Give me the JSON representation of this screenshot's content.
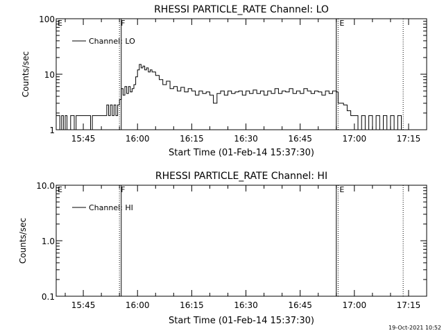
{
  "footer": {
    "timestamp": "19-Oct-2021 10:52"
  },
  "chart_data": [
    {
      "type": "line",
      "title": "RHESSI PARTICLE_RATE Channel: LO",
      "xlabel": "Start Time (01-Feb-14 15:37:30)",
      "ylabel": "Counts/sec",
      "yscale": "log",
      "ylim": [
        1,
        100
      ],
      "xlim": [
        "15:37:30",
        "17:20:00"
      ],
      "x_ticks": [
        "15:45",
        "16:00",
        "16:15",
        "16:30",
        "16:45",
        "17:00",
        "17:15"
      ],
      "y_ticks": [
        "1",
        "10",
        "100"
      ],
      "legend": {
        "entries": [
          "Channel: LO"
        ],
        "position": "top-left"
      },
      "markers": [
        {
          "label": "E",
          "time": "15:37:30",
          "style": "dotted"
        },
        {
          "label": "F",
          "time": "15:55:00",
          "style": "dotted"
        },
        {
          "label": "",
          "time": "15:55:30",
          "style": "solid"
        },
        {
          "label": "E",
          "time": "16:55:30",
          "style": "dotted"
        },
        {
          "label": "",
          "time": "16:55:00",
          "style": "solid"
        },
        {
          "label": "",
          "time": "17:13:30",
          "style": "dotted"
        }
      ],
      "series": [
        {
          "name": "Channel: LO",
          "x": [
            "15:37:30",
            "15:38:30",
            "15:39:00",
            "15:39:30",
            "15:40:00",
            "15:40:30",
            "15:41:00",
            "15:41:30",
            "15:42:00",
            "15:42:30",
            "15:43:00",
            "15:44:00",
            "15:45:00",
            "15:46:00",
            "15:47:00",
            "15:47:30",
            "15:48:00",
            "15:49:00",
            "15:50:00",
            "15:51:00",
            "15:51:30",
            "15:52:00",
            "15:52:30",
            "15:53:00",
            "15:53:30",
            "15:54:00",
            "15:54:30",
            "15:55:00",
            "15:55:30",
            "15:56:00",
            "15:56:30",
            "15:57:00",
            "15:57:30",
            "15:58:00",
            "15:58:30",
            "15:59:00",
            "15:59:30",
            "16:00:00",
            "16:00:30",
            "16:01:00",
            "16:01:30",
            "16:02:00",
            "16:02:30",
            "16:03:00",
            "16:03:30",
            "16:04:00",
            "16:05:00",
            "16:06:00",
            "16:07:00",
            "16:08:00",
            "16:09:00",
            "16:10:00",
            "16:11:00",
            "16:12:00",
            "16:13:00",
            "16:14:00",
            "16:15:00",
            "16:16:00",
            "16:17:00",
            "16:18:00",
            "16:19:00",
            "16:20:00",
            "16:21:00",
            "16:22:00",
            "16:23:00",
            "16:24:00",
            "16:25:00",
            "16:26:00",
            "16:27:00",
            "16:28:00",
            "16:29:00",
            "16:30:00",
            "16:31:00",
            "16:32:00",
            "16:33:00",
            "16:34:00",
            "16:35:00",
            "16:36:00",
            "16:37:00",
            "16:38:00",
            "16:39:00",
            "16:40:00",
            "16:41:00",
            "16:42:00",
            "16:43:00",
            "16:44:00",
            "16:45:00",
            "16:46:00",
            "16:47:00",
            "16:48:00",
            "16:49:00",
            "16:50:00",
            "16:51:00",
            "16:52:00",
            "16:53:00",
            "16:54:00",
            "16:55:00",
            "16:55:30",
            "16:56:00",
            "16:57:00",
            "16:58:00",
            "16:59:00",
            "17:00:00",
            "17:01:00",
            "17:02:00",
            "17:03:00",
            "17:04:00",
            "17:05:00",
            "17:06:00",
            "17:07:00",
            "17:08:00",
            "17:09:00",
            "17:10:00",
            "17:11:00",
            "17:12:00",
            "17:13:00"
          ],
          "y": [
            1.8,
            1.0,
            1.8,
            1.0,
            1.8,
            1.0,
            1.0,
            1.8,
            1.8,
            1.0,
            1.8,
            1.8,
            1.8,
            1.8,
            1.0,
            1.8,
            1.8,
            1.8,
            1.8,
            1.8,
            2.8,
            1.8,
            2.8,
            1.8,
            2.8,
            1.8,
            2.8,
            3.5,
            5.5,
            4.2,
            6.0,
            4.5,
            6.0,
            4.8,
            5.5,
            6.5,
            9.0,
            12.0,
            15.0,
            13.0,
            14.0,
            12.0,
            13.0,
            11.0,
            12.0,
            11.0,
            9.5,
            8.0,
            6.5,
            7.5,
            5.5,
            6.0,
            5.0,
            5.8,
            4.8,
            5.5,
            5.0,
            4.2,
            5.0,
            4.5,
            4.8,
            4.2,
            3.0,
            4.5,
            5.0,
            4.2,
            5.0,
            4.5,
            4.8,
            5.0,
            4.2,
            5.0,
            4.5,
            5.2,
            4.5,
            5.0,
            4.2,
            5.0,
            4.5,
            5.5,
            4.5,
            5.0,
            4.8,
            5.5,
            4.5,
            5.0,
            4.5,
            5.5,
            5.0,
            4.5,
            5.0,
            4.8,
            4.2,
            5.0,
            4.5,
            5.0,
            4.8,
            3.0,
            3.0,
            2.8,
            2.2,
            1.8,
            1.8,
            1.0,
            1.8,
            1.0,
            1.8,
            1.0,
            1.8,
            1.0,
            1.8,
            1.0,
            1.8,
            1.0,
            1.8,
            1.0
          ]
        }
      ]
    },
    {
      "type": "line",
      "title": "RHESSI PARTICLE_RATE Channel: HI",
      "xlabel": "Start Time (01-Feb-14 15:37:30)",
      "ylabel": "Counts/sec",
      "yscale": "log",
      "ylim": [
        0.1,
        10
      ],
      "xlim": [
        "15:37:30",
        "17:20:00"
      ],
      "x_ticks": [
        "15:45",
        "16:00",
        "16:15",
        "16:30",
        "16:45",
        "17:00",
        "17:15"
      ],
      "y_ticks": [
        "0.1",
        "1.0",
        "10.0"
      ],
      "legend": {
        "entries": [
          "Channel: HI"
        ],
        "position": "top-left"
      },
      "markers": [
        {
          "label": "E",
          "time": "15:37:30",
          "style": "dotted"
        },
        {
          "label": "F",
          "time": "15:55:00",
          "style": "dotted"
        },
        {
          "label": "",
          "time": "15:55:30",
          "style": "solid"
        },
        {
          "label": "E",
          "time": "16:55:30",
          "style": "dotted"
        },
        {
          "label": "",
          "time": "16:55:00",
          "style": "solid"
        },
        {
          "label": "",
          "time": "17:13:30",
          "style": "dotted"
        }
      ],
      "series": [
        {
          "name": "Channel: HI",
          "x": [],
          "y": []
        }
      ]
    }
  ]
}
